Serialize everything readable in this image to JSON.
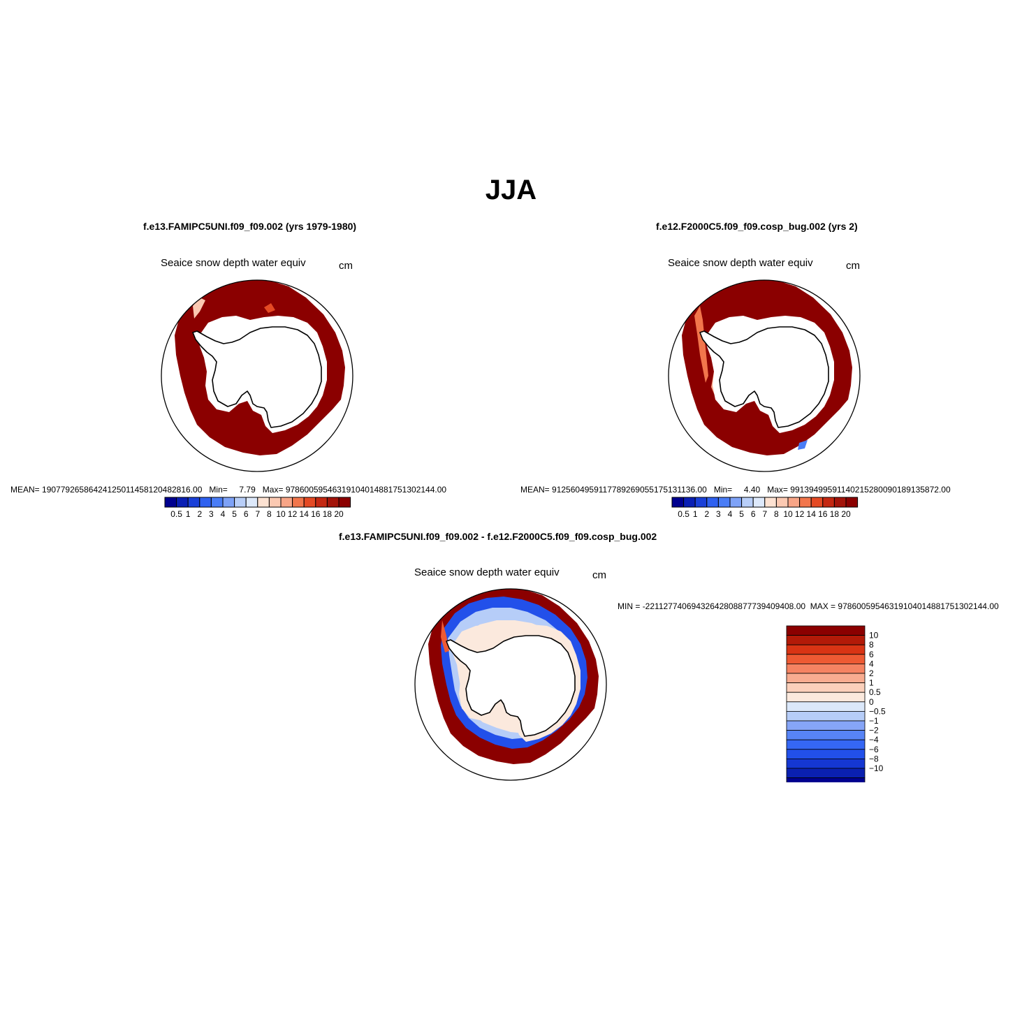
{
  "page_title": "JJA",
  "colors": {
    "land": "#ffffff",
    "coastline": "#000000",
    "sea_ice": "#8b0000",
    "abs_scale": [
      "#00008f",
      "#0a1fb4",
      "#1a40d8",
      "#2f61f0",
      "#4a7df6",
      "#7ea2f7",
      "#b8cef8",
      "#dde9fb",
      "#fde2d2",
      "#fbc9b2",
      "#f8a587",
      "#f2764c",
      "#e44a24",
      "#c42812",
      "#a3140a",
      "#8b0000"
    ],
    "diff_scale": [
      "#00008f",
      "#0a20b0",
      "#1537d2",
      "#2250ea",
      "#3567f4",
      "#5784f6",
      "#86a5f7",
      "#b6cdf8",
      "#dbe8fa",
      "#fbe9dd",
      "#fbd0bb",
      "#f8ac90",
      "#f58362",
      "#ee5a33",
      "#d93414",
      "#b31a08",
      "#8b0000"
    ]
  },
  "panels": [
    {
      "id": "top-left",
      "case": "f.e13.FAMIPC5UNI.f09_f09.002 (yrs 1979-1980)",
      "variable": "Seaice snow depth water equiv",
      "units": "cm",
      "stats": {
        "mean_label": "MEAN=",
        "mean": "19077926586424125011458120482816.00",
        "min_label": "Min=",
        "min": "7.79",
        "max_label": "Max=",
        "max": "97860059546319104014881751302144.00"
      },
      "colorbar_labels": [
        "0.5",
        "1",
        "2",
        "3",
        "4",
        "5",
        "6",
        "7",
        "8",
        "10",
        "12",
        "14",
        "16",
        "18",
        "20"
      ]
    },
    {
      "id": "top-right",
      "case": "f.e12.F2000C5.f09_f09.cosp_bug.002 (yrs 2)",
      "variable": "Seaice snow depth water equiv",
      "units": "cm",
      "stats": {
        "mean_label": "MEAN=",
        "mean": "9125604959117789269055175131136.00",
        "min_label": "Min=",
        "min": "4.40",
        "max_label": "Max=",
        "max": "99139499591140215280090189135872.00"
      },
      "colorbar_labels": [
        "0.5",
        "1",
        "2",
        "3",
        "4",
        "5",
        "6",
        "7",
        "8",
        "10",
        "12",
        "14",
        "16",
        "18",
        "20"
      ]
    },
    {
      "id": "bottom",
      "case": "f.e13.FAMIPC5UNI.f09_f09.002 - f.e12.F2000C5.f09_f09.cosp_bug.002",
      "variable": "Seaice snow depth water equiv",
      "units": "cm",
      "stats": {
        "min_label": "MIN =",
        "min": "-22112774069432642808877739409408.00",
        "max_label": "MAX =",
        "max": "97860059546319104014881751302144.00"
      },
      "colorbar_labels": [
        "10",
        "8",
        "6",
        "4",
        "2",
        "1",
        "0.5",
        "0",
        "−0.5",
        "−1",
        "−2",
        "−4",
        "−6",
        "−8",
        "−10"
      ]
    }
  ]
}
